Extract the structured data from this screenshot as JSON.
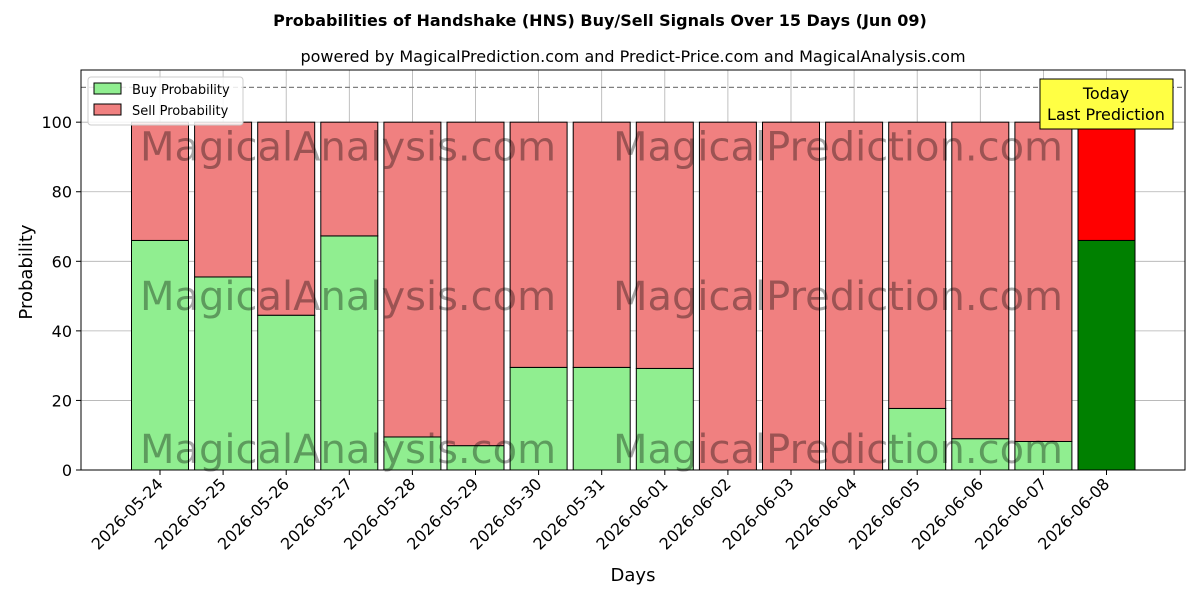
{
  "chart_data": {
    "type": "bar",
    "stacked": true,
    "title": "Probabilities of Handshake (HNS) Buy/Sell Signals Over 15 Days (Jun 09)",
    "subtitle": "powered by MagicalPrediction.com and Predict-Price.com and MagicalAnalysis.com",
    "xlabel": "Days",
    "ylabel": "Probability",
    "ylim": [
      0,
      115
    ],
    "yticks": [
      0,
      20,
      40,
      60,
      80,
      100
    ],
    "grid": true,
    "legend_position": "top-left",
    "reference_line": 110,
    "categories": [
      "2026-05-24",
      "2026-05-25",
      "2026-05-26",
      "2026-05-27",
      "2026-05-28",
      "2026-05-29",
      "2026-05-30",
      "2026-05-31",
      "2026-06-01",
      "2026-06-02",
      "2026-06-03",
      "2026-06-04",
      "2026-06-05",
      "2026-06-06",
      "2026-06-07",
      "2026-06-08"
    ],
    "series": [
      {
        "name": "Buy Probability",
        "color": "#90ee90",
        "highlight_color": "#008000",
        "values": [
          66,
          55.5,
          44.5,
          67.3,
          9.5,
          7,
          29.5,
          29.5,
          29.2,
          0,
          0,
          0,
          17.7,
          9,
          8.2,
          66
        ]
      },
      {
        "name": "Sell Probability",
        "color": "#f08080",
        "highlight_color": "#ff0000",
        "values": [
          34,
          44.5,
          55.5,
          32.7,
          90.5,
          93,
          70.5,
          70.5,
          70.8,
          100,
          100,
          100,
          82.3,
          91,
          91.8,
          34
        ]
      }
    ],
    "annotation": {
      "text_line1": "Today",
      "text_line2": "Last Prediction",
      "background": "#ffff44"
    },
    "watermarks": [
      "MagicalAnalysis.com",
      "MagicalPrediction.com"
    ]
  }
}
